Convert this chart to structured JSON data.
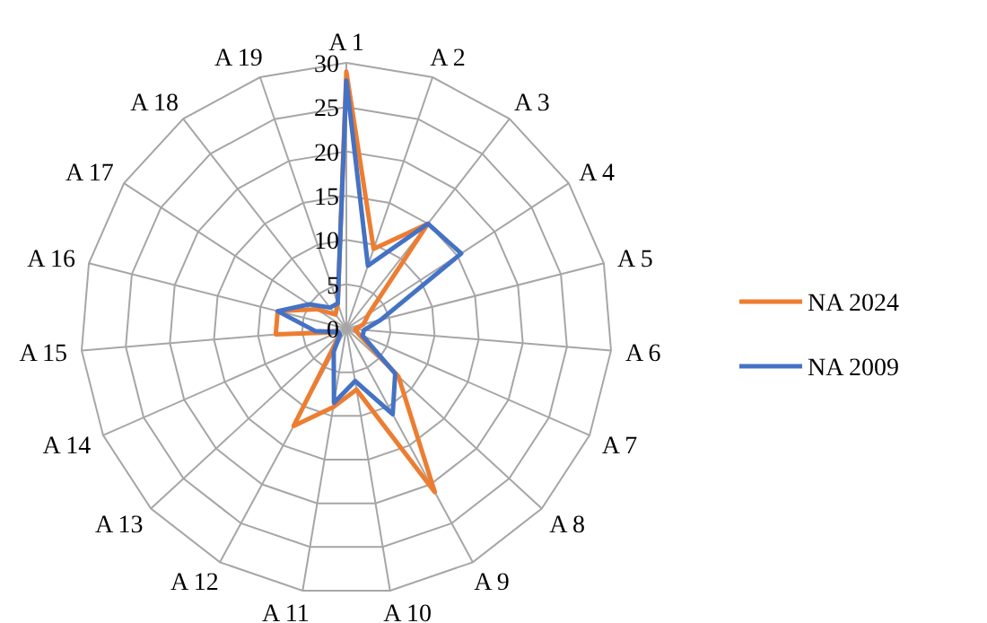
{
  "chart_data": {
    "type": "radar",
    "categories": [
      "A  1",
      "A  2",
      "A  3",
      "A  4",
      "A  5",
      "A  6",
      "A  7",
      "A  8",
      "A  9",
      "A 10",
      "A 11",
      "A 12",
      "A 13",
      "A 14",
      "A 15",
      "A 16",
      "A 17",
      "A 18",
      "A 19"
    ],
    "series": [
      {
        "name": "NA 2024",
        "color": "#ed7d31",
        "values": [
          29,
          9.5,
          15,
          3,
          2,
          1,
          1.5,
          8,
          21,
          7,
          9,
          12.5,
          1,
          1,
          8,
          8,
          4,
          2,
          3
        ]
      },
      {
        "name": "NA 2009",
        "color": "#4472c4",
        "values": [
          28,
          7.5,
          15,
          15.5,
          4,
          2,
          2,
          7.5,
          11,
          6,
          8.5,
          3,
          1,
          1,
          3.5,
          8,
          5,
          3,
          3
        ]
      }
    ],
    "ylim": [
      0,
      30
    ],
    "yticks": [
      0,
      5,
      10,
      15,
      20,
      25,
      30
    ],
    "grid": true,
    "legend": "right",
    "marker": "none"
  }
}
